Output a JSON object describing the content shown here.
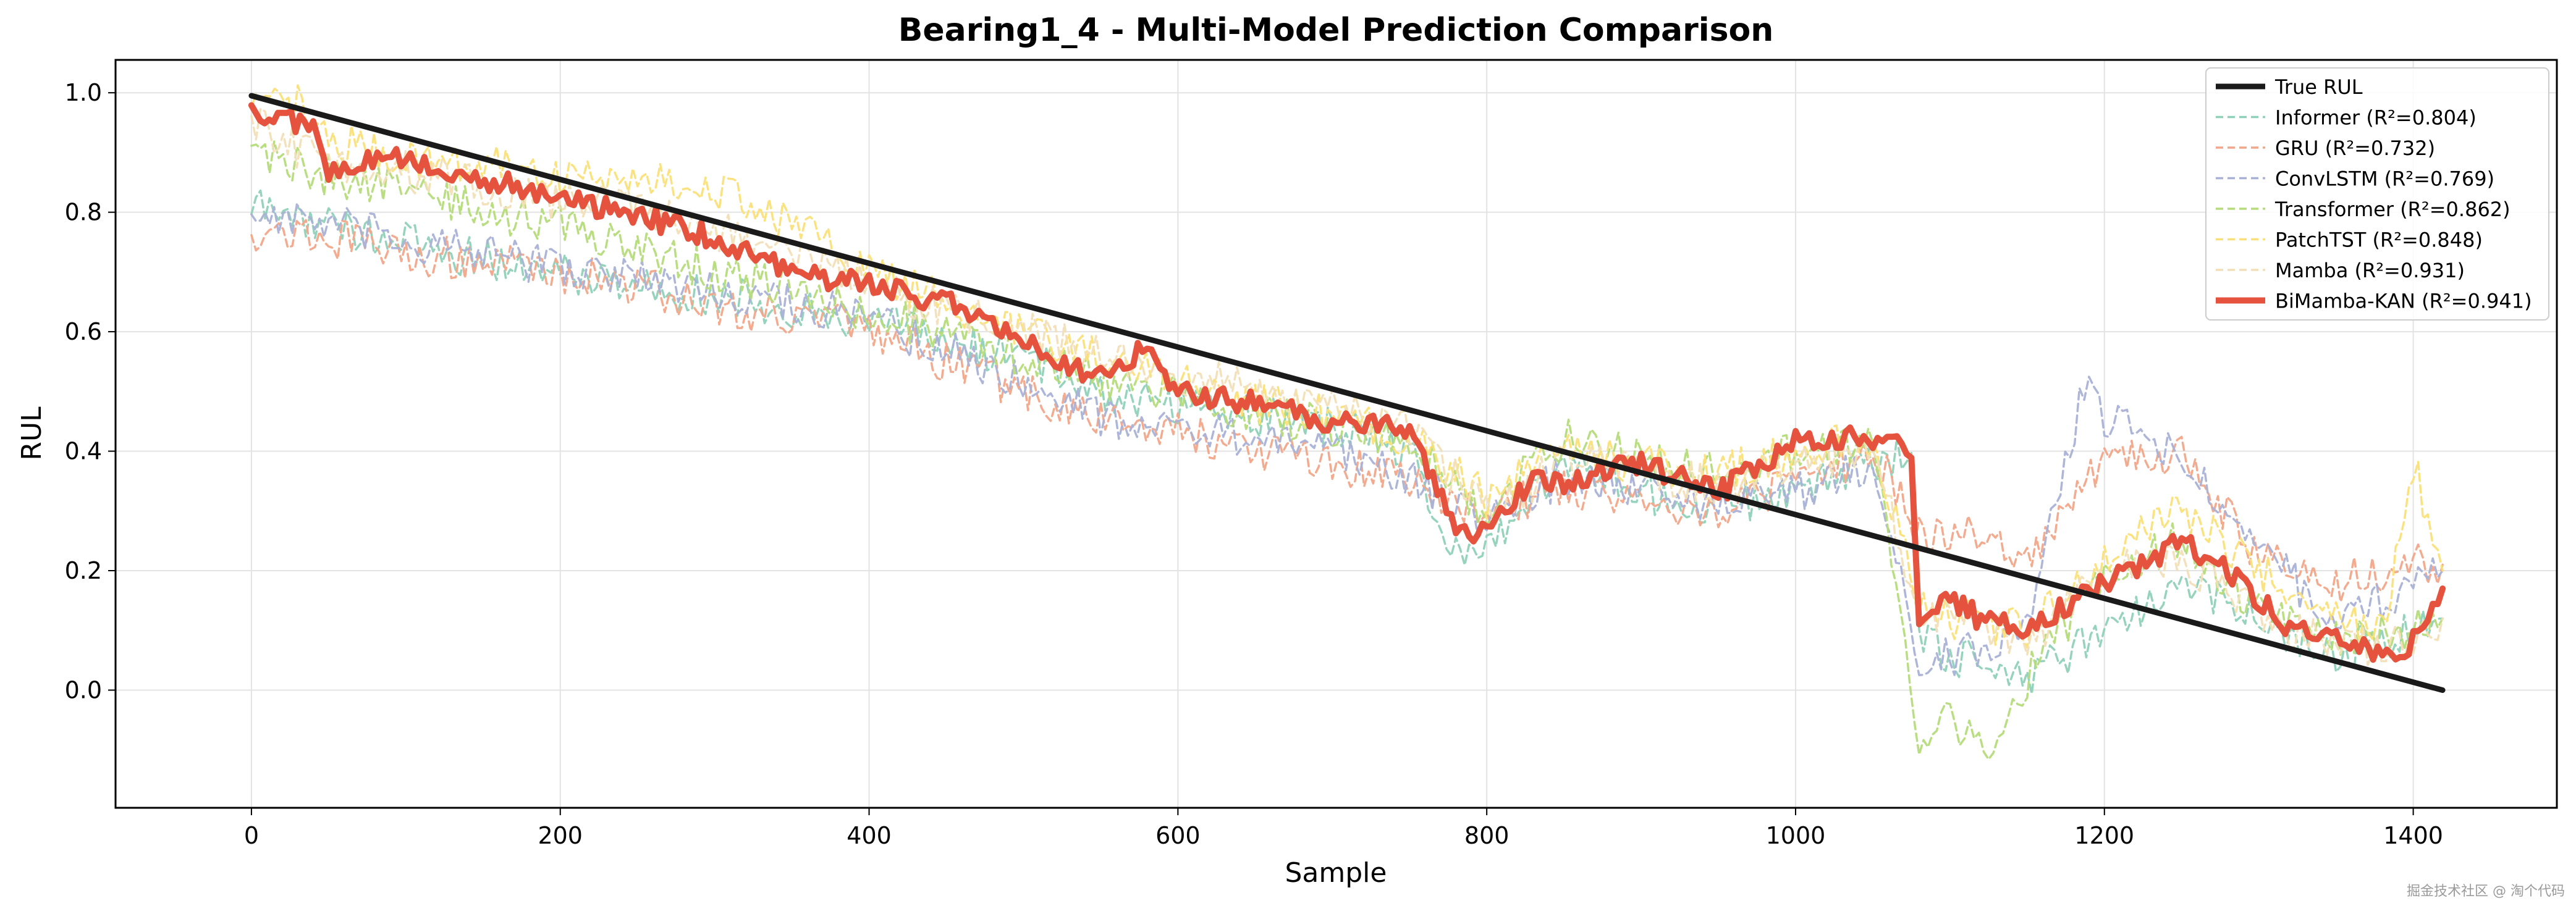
{
  "chart_data": {
    "type": "line",
    "title": "Bearing1_4 - Multi-Model Prediction Comparison",
    "xlabel": "Sample",
    "ylabel": "RUL",
    "xlim": [
      -88,
      1493
    ],
    "ylim": [
      -0.197,
      1.055
    ],
    "xticks": [
      0,
      200,
      400,
      600,
      800,
      1000,
      1200,
      1400
    ],
    "yticks": [
      0.0,
      0.2,
      0.4,
      0.6,
      0.8,
      1.0
    ],
    "grid": true,
    "legend_position": "top-right",
    "series": [
      {
        "name": "True RUL",
        "style": "solid",
        "color": "#1a1a1a",
        "x": [
          0,
          1419
        ],
        "y": [
          0.995,
          0.0
        ]
      },
      {
        "name": "Informer (R²=0.804)",
        "style": "dashed",
        "color": "#8fd1b8",
        "x": [
          0,
          50,
          100,
          150,
          200,
          250,
          300,
          350,
          400,
          450,
          500,
          550,
          600,
          650,
          700,
          750,
          780,
          800,
          850,
          900,
          950,
          1000,
          1050,
          1075,
          1080,
          1100,
          1150,
          1200,
          1250,
          1300,
          1350,
          1400,
          1419
        ],
        "y": [
          0.81,
          0.78,
          0.75,
          0.72,
          0.7,
          0.68,
          0.66,
          0.64,
          0.62,
          0.58,
          0.56,
          0.5,
          0.48,
          0.46,
          0.44,
          0.4,
          0.22,
          0.25,
          0.38,
          0.33,
          0.3,
          0.34,
          0.38,
          0.4,
          0.08,
          0.06,
          0.02,
          0.1,
          0.18,
          0.12,
          0.06,
          0.1,
          0.12
        ]
      },
      {
        "name": "GRU (R²=0.732)",
        "style": "dashed",
        "color": "#f2a78a",
        "x": [
          0,
          50,
          100,
          150,
          200,
          250,
          300,
          350,
          400,
          450,
          500,
          550,
          600,
          650,
          700,
          750,
          800,
          850,
          900,
          950,
          1000,
          1050,
          1080,
          1100,
          1150,
          1200,
          1250,
          1300,
          1350,
          1400,
          1419
        ],
        "y": [
          0.77,
          0.76,
          0.73,
          0.72,
          0.7,
          0.68,
          0.64,
          0.63,
          0.6,
          0.55,
          0.5,
          0.45,
          0.44,
          0.4,
          0.38,
          0.35,
          0.3,
          0.34,
          0.32,
          0.3,
          0.35,
          0.4,
          0.26,
          0.27,
          0.22,
          0.38,
          0.4,
          0.22,
          0.18,
          0.21,
          0.21
        ]
      },
      {
        "name": "ConvLSTM (R²=0.769)",
        "style": "dashed",
        "color": "#a9b1d6",
        "x": [
          0,
          50,
          100,
          150,
          200,
          250,
          300,
          350,
          400,
          450,
          500,
          550,
          600,
          650,
          700,
          750,
          800,
          850,
          900,
          950,
          1000,
          1050,
          1080,
          1100,
          1150,
          1190,
          1200,
          1250,
          1300,
          1350,
          1400,
          1419
        ],
        "y": [
          0.8,
          0.78,
          0.75,
          0.73,
          0.71,
          0.69,
          0.67,
          0.65,
          0.62,
          0.57,
          0.52,
          0.46,
          0.44,
          0.42,
          0.4,
          0.36,
          0.28,
          0.36,
          0.34,
          0.31,
          0.33,
          0.38,
          0.06,
          0.05,
          0.1,
          0.55,
          0.45,
          0.4,
          0.25,
          0.1,
          0.18,
          0.2
        ]
      },
      {
        "name": "Transformer (R²=0.862)",
        "style": "dashed",
        "color": "#b5db7a",
        "x": [
          0,
          50,
          100,
          150,
          200,
          250,
          300,
          350,
          400,
          450,
          500,
          550,
          600,
          650,
          700,
          750,
          800,
          850,
          900,
          950,
          1000,
          1050,
          1080,
          1100,
          1125,
          1150,
          1200,
          1250,
          1300,
          1350,
          1400,
          1419
        ],
        "y": [
          0.91,
          0.86,
          0.84,
          0.8,
          0.78,
          0.74,
          0.7,
          0.67,
          0.63,
          0.6,
          0.56,
          0.52,
          0.5,
          0.46,
          0.44,
          0.42,
          0.3,
          0.42,
          0.4,
          0.36,
          0.4,
          0.42,
          -0.08,
          -0.05,
          -0.12,
          0.02,
          0.2,
          0.25,
          0.14,
          0.08,
          0.1,
          0.12
        ]
      },
      {
        "name": "PatchTST (R²=0.848)",
        "style": "dashed",
        "color": "#fae07a",
        "x": [
          0,
          30,
          50,
          100,
          150,
          200,
          250,
          300,
          350,
          400,
          450,
          500,
          550,
          600,
          650,
          700,
          750,
          800,
          850,
          900,
          950,
          1000,
          1050,
          1080,
          1100,
          1150,
          1200,
          1250,
          1300,
          1350,
          1380,
          1400,
          1419
        ],
        "y": [
          0.97,
          0.98,
          0.92,
          0.89,
          0.88,
          0.86,
          0.86,
          0.84,
          0.78,
          0.7,
          0.65,
          0.6,
          0.56,
          0.52,
          0.48,
          0.46,
          0.42,
          0.32,
          0.4,
          0.38,
          0.36,
          0.4,
          0.42,
          0.15,
          0.12,
          0.1,
          0.22,
          0.3,
          0.2,
          0.12,
          0.1,
          0.38,
          0.2
        ]
      },
      {
        "name": "Mamba (R²=0.931)",
        "style": "dashed",
        "color": "#f2dfb8",
        "x": [
          0,
          50,
          100,
          150,
          200,
          250,
          300,
          350,
          400,
          450,
          500,
          550,
          600,
          650,
          700,
          750,
          800,
          850,
          900,
          950,
          1000,
          1050,
          1080,
          1100,
          1150,
          1200,
          1250,
          1300,
          1350,
          1400,
          1419
        ],
        "y": [
          0.95,
          0.88,
          0.87,
          0.84,
          0.82,
          0.81,
          0.77,
          0.73,
          0.68,
          0.64,
          0.6,
          0.56,
          0.53,
          0.5,
          0.47,
          0.44,
          0.3,
          0.38,
          0.37,
          0.34,
          0.38,
          0.4,
          0.14,
          0.12,
          0.08,
          0.2,
          0.22,
          0.12,
          0.07,
          0.08,
          0.12
        ]
      },
      {
        "name": "BiMamba-KAN (R²=0.941)",
        "style": "solid",
        "color": "#e5533f",
        "x": [
          0,
          20,
          40,
          50,
          60,
          100,
          130,
          160,
          200,
          250,
          280,
          300,
          350,
          400,
          450,
          480,
          500,
          550,
          580,
          600,
          650,
          700,
          750,
          780,
          800,
          830,
          850,
          900,
          950,
          1000,
          1050,
          1075,
          1080,
          1100,
          1120,
          1150,
          1180,
          1200,
          1230,
          1250,
          1280,
          1300,
          1320,
          1350,
          1380,
          1400,
          1419
        ],
        "y": [
          0.97,
          0.96,
          0.94,
          0.87,
          0.88,
          0.89,
          0.86,
          0.85,
          0.82,
          0.8,
          0.77,
          0.76,
          0.7,
          0.68,
          0.65,
          0.62,
          0.58,
          0.52,
          0.58,
          0.5,
          0.48,
          0.45,
          0.44,
          0.28,
          0.26,
          0.36,
          0.35,
          0.38,
          0.33,
          0.42,
          0.42,
          0.4,
          0.12,
          0.15,
          0.12,
          0.1,
          0.15,
          0.18,
          0.22,
          0.25,
          0.2,
          0.15,
          0.1,
          0.09,
          0.06,
          0.08,
          0.17
        ]
      }
    ]
  },
  "watermark": "掘金技术社区 @ 淘个代码"
}
